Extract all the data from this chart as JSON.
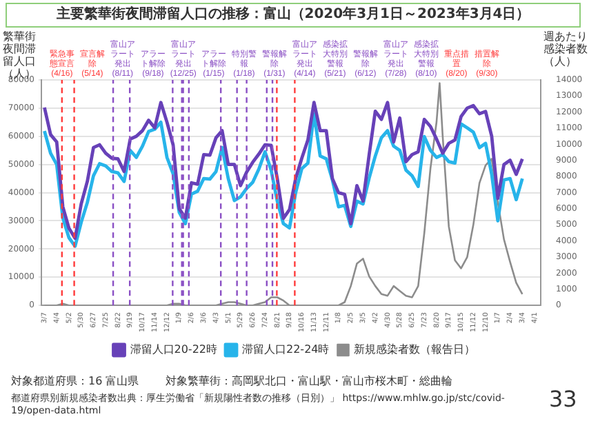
{
  "chart_data": {
    "type": "line",
    "title": "主要繁華街夜間滞留人口の推移：富山（2020年3月1日～2023年3月4日）",
    "ylabel": "繁華街夜間滞留人口（人）",
    "y2label": "週あたり感染者数（人）",
    "x": [
      "2020-03-07",
      "2020-03-21",
      "2020-04-04",
      "2020-04-18",
      "2020-05-02",
      "2020-05-16",
      "2020-05-30",
      "2020-06-13",
      "2020-06-27",
      "2020-07-11",
      "2020-07-25",
      "2020-08-08",
      "2020-08-22",
      "2020-09-05",
      "2020-09-19",
      "2020-10-03",
      "2020-10-17",
      "2020-10-31",
      "2020-11-14",
      "2020-11-28",
      "2020-12-12",
      "2020-12-26",
      "2021-01-09",
      "2021-01-23",
      "2021-02-06",
      "2021-02-20",
      "2021-03-06",
      "2021-03-20",
      "2021-04-03",
      "2021-04-17",
      "2021-05-01",
      "2021-05-15",
      "2021-05-29",
      "2021-06-12",
      "2021-06-26",
      "2021-07-10",
      "2021-07-24",
      "2021-08-07",
      "2021-08-21",
      "2021-09-04",
      "2021-09-18",
      "2021-10-02",
      "2021-10-16",
      "2021-10-30",
      "2021-11-13",
      "2021-11-27",
      "2021-12-11",
      "2021-12-25",
      "2022-01-08",
      "2022-01-22",
      "2022-02-05",
      "2022-02-19",
      "2022-03-05",
      "2022-03-19",
      "2022-04-02",
      "2022-04-16",
      "2022-04-30",
      "2022-05-14",
      "2022-05-28",
      "2022-06-11",
      "2022-06-25",
      "2022-07-09",
      "2022-07-23",
      "2022-08-06",
      "2022-08-20",
      "2022-09-03",
      "2022-09-17",
      "2022-10-01",
      "2022-10-15",
      "2022-10-29",
      "2022-11-12",
      "2022-11-26",
      "2022-12-10",
      "2022-12-24",
      "2023-01-07",
      "2023-01-21",
      "2023-02-04",
      "2023-02-18",
      "2023-03-04"
    ],
    "series": [
      {
        "name": "滞留人口20-22時",
        "color": "#6741b8",
        "values": [
          70200,
          60600,
          58000,
          35000,
          27400,
          23800,
          36000,
          44000,
          56000,
          57000,
          54000,
          52200,
          52000,
          47500,
          59000,
          60000,
          62000,
          65700,
          63000,
          72000,
          65000,
          57000,
          34300,
          31000,
          43500,
          43000,
          53500,
          53300,
          59500,
          62000,
          50000,
          50000,
          42500,
          47300,
          50800,
          53700,
          57000,
          56800,
          45000,
          30900,
          34000,
          45000,
          52200,
          58700,
          72000,
          62000,
          62000,
          45000,
          40000,
          39400,
          29000,
          42500,
          37000,
          53500,
          68900,
          66000,
          72000,
          58000,
          66500,
          51000,
          53500,
          54500,
          66000,
          63500,
          59000,
          54000,
          57500,
          58700,
          67000,
          70000,
          70900,
          68000,
          68800,
          60000,
          38000,
          50000,
          51500,
          46500,
          52000
        ]
      },
      {
        "name": "滞留人口22-24時",
        "color": "#27b4ea",
        "values": [
          61900,
          54000,
          50000,
          31000,
          24000,
          21000,
          29500,
          36500,
          46000,
          50300,
          49500,
          47500,
          47000,
          44000,
          55000,
          52500,
          56500,
          61700,
          62500,
          65000,
          52500,
          46700,
          33000,
          29000,
          39500,
          40500,
          45000,
          44800,
          47500,
          56000,
          45000,
          37200,
          38500,
          41500,
          43700,
          48400,
          54500,
          48000,
          37000,
          29000,
          27500,
          40000,
          48500,
          50500,
          68000,
          53000,
          52000,
          44500,
          35000,
          35500,
          28000,
          37000,
          36000,
          45200,
          53000,
          59500,
          62000,
          56500,
          55000,
          48000,
          46000,
          42200,
          59900,
          55000,
          52500,
          53500,
          51000,
          50500,
          64400,
          63000,
          61500,
          56000,
          57500,
          46500,
          30000,
          44500,
          45000,
          37500,
          45000
        ]
      },
      {
        "name": "新規感染者数（報告日）",
        "color": "#8c8c8c",
        "axis": "y2",
        "x": [
          "2020-03-07",
          "2020-03-21",
          "2020-04-04",
          "2020-04-18",
          "2020-05-02",
          "2020-05-16",
          "2020-05-30",
          "2020-06-13",
          "2020-06-27",
          "2020-07-11",
          "2020-07-25",
          "2020-08-08",
          "2020-08-22",
          "2020-09-05",
          "2020-09-19",
          "2020-10-03",
          "2020-10-17",
          "2020-10-31",
          "2020-11-14",
          "2020-11-28",
          "2020-12-12",
          "2020-12-26",
          "2021-01-09",
          "2021-01-23",
          "2021-02-06",
          "2021-02-20",
          "2021-03-06",
          "2021-03-20",
          "2021-04-03",
          "2021-04-17",
          "2021-05-01",
          "2021-05-15",
          "2021-05-29",
          "2021-06-12",
          "2021-06-26",
          "2021-07-10",
          "2021-07-24",
          "2021-08-07",
          "2021-08-21",
          "2021-09-04",
          "2021-09-18",
          "2021-10-02",
          "2021-10-16",
          "2021-10-30",
          "2021-11-13",
          "2021-11-27",
          "2021-12-11",
          "2021-12-25",
          "2022-01-08",
          "2022-01-22",
          "2022-02-05",
          "2022-02-19",
          "2022-03-05",
          "2022-03-19",
          "2022-04-02",
          "2022-04-16",
          "2022-04-30",
          "2022-05-14",
          "2022-05-28",
          "2022-06-11",
          "2022-06-25",
          "2022-07-09",
          "2022-07-23",
          "2022-08-06",
          "2022-08-20",
          "2022-08-27",
          "2022-09-03",
          "2022-09-17",
          "2022-10-01",
          "2022-10-15",
          "2022-10-29",
          "2022-11-12",
          "2022-11-26",
          "2022-12-10",
          "2022-12-24",
          "2023-01-07",
          "2023-01-21",
          "2023-02-04",
          "2023-02-18",
          "2023-03-04"
        ],
        "values": [
          0,
          0,
          0,
          100,
          0,
          0,
          0,
          0,
          0,
          0,
          0,
          0,
          0,
          0,
          0,
          0,
          0,
          0,
          0,
          0,
          0,
          100,
          100,
          0,
          0,
          0,
          0,
          0,
          0,
          100,
          200,
          200,
          100,
          0,
          0,
          100,
          200,
          500,
          500,
          300,
          0,
          0,
          0,
          0,
          0,
          0,
          0,
          0,
          0,
          200,
          1200,
          2600,
          2900,
          1800,
          1200,
          700,
          600,
          1200,
          900,
          600,
          500,
          1200,
          4500,
          8500,
          11400,
          13800,
          10500,
          4900,
          2800,
          2300,
          3000,
          5000,
          7600,
          8700,
          9100,
          6400,
          4100,
          2700,
          1400,
          700
        ]
      }
    ],
    "xlim": [
      "2020-02-29",
      "2023-04-15"
    ],
    "xticks": [
      {
        "value": "2020-03-07",
        "label": "3/7"
      },
      {
        "value": "2020-04-04",
        "label": "4/4"
      },
      {
        "value": "2020-05-02",
        "label": "5/2"
      },
      {
        "value": "2020-05-30",
        "label": "5/30"
      },
      {
        "value": "2020-06-27",
        "label": "6/27"
      },
      {
        "value": "2020-07-25",
        "label": "7/25"
      },
      {
        "value": "2020-08-22",
        "label": "8/22"
      },
      {
        "value": "2020-09-19",
        "label": "9/19"
      },
      {
        "value": "2020-10-17",
        "label": "10/17"
      },
      {
        "value": "2020-11-14",
        "label": "11/14"
      },
      {
        "value": "2020-12-12",
        "label": "12/12"
      },
      {
        "value": "2021-01-09",
        "label": "1/9"
      },
      {
        "value": "2021-02-06",
        "label": "2/6"
      },
      {
        "value": "2021-03-06",
        "label": "3/6"
      },
      {
        "value": "2021-04-03",
        "label": "4/3"
      },
      {
        "value": "2021-05-01",
        "label": "5/1"
      },
      {
        "value": "2021-05-29",
        "label": "5/29"
      },
      {
        "value": "2021-06-26",
        "label": "6/26"
      },
      {
        "value": "2021-07-24",
        "label": "7/24"
      },
      {
        "value": "2021-08-21",
        "label": "8/21"
      },
      {
        "value": "2021-09-18",
        "label": "9/18"
      },
      {
        "value": "2021-10-16",
        "label": "10/16"
      },
      {
        "value": "2021-11-13",
        "label": "11/13"
      },
      {
        "value": "2021-12-11",
        "label": "12/11"
      },
      {
        "value": "2022-01-08",
        "label": "1/8"
      },
      {
        "value": "2022-02-05",
        "label": "2/5"
      },
      {
        "value": "2022-03-05",
        "label": "3/5"
      },
      {
        "value": "2022-04-02",
        "label": "4/2"
      },
      {
        "value": "2022-04-30",
        "label": "4/30"
      },
      {
        "value": "2022-05-28",
        "label": "5/28"
      },
      {
        "value": "2022-06-25",
        "label": "6/25"
      },
      {
        "value": "2022-07-23",
        "label": "7/23"
      },
      {
        "value": "2022-08-20",
        "label": "8/20"
      },
      {
        "value": "2022-09-17",
        "label": "9/17"
      },
      {
        "value": "2022-10-15",
        "label": "10/15"
      },
      {
        "value": "2022-11-12",
        "label": "11/12"
      },
      {
        "value": "2022-12-10",
        "label": "12/10"
      },
      {
        "value": "2023-01-07",
        "label": "1/7"
      },
      {
        "value": "2023-02-04",
        "label": "2/4"
      },
      {
        "value": "2023-03-04",
        "label": "3/4"
      },
      {
        "value": "2023-04-01",
        "label": "4/1"
      }
    ],
    "ylim": [
      0,
      80000
    ],
    "yticks": [
      0,
      10000,
      20000,
      30000,
      40000,
      50000,
      60000,
      70000,
      80000
    ],
    "y2lim": [
      0,
      14000
    ],
    "y2ticks": [
      0,
      1000,
      2000,
      3000,
      4000,
      5000,
      6000,
      7000,
      8000,
      9000,
      10000,
      11000,
      12000,
      13000,
      14000
    ],
    "ref_lines": [
      {
        "axis": "x",
        "value": "2020-04-16",
        "label": "緊急事態宣言(4/16)",
        "color": "#ff3b3b",
        "line_style": "dashed"
      },
      {
        "axis": "x",
        "value": "2020-05-14",
        "label": "宣言解除(5/14)",
        "color": "#ff3b3b",
        "line_style": "dashed"
      },
      {
        "axis": "x",
        "value": "2020-08-11",
        "label": "富山アラート発出(8/11)",
        "color": "#8a4fc4",
        "line_style": "dashed"
      },
      {
        "axis": "x",
        "value": "2020-09-18",
        "label": "アラート解除(9/18)",
        "color": "#8a4fc4",
        "line_style": "dashed"
      },
      {
        "axis": "x",
        "value": "2020-12-25",
        "label": "富山アラート発出(12/25)",
        "color": "#8a4fc4",
        "line_style": "dashed"
      },
      {
        "axis": "x",
        "value": "2021-01-15",
        "label": "アラート解除(1/15)",
        "color": "#8a4fc4",
        "line_style": "dashed"
      },
      {
        "axis": "x",
        "value": "2021-01-18",
        "label": "特別警報(1/18)",
        "color": "#8a4fc4",
        "line_style": "dashed"
      },
      {
        "axis": "x",
        "value": "2021-01-31",
        "label": "警報解除(1/31)",
        "color": "#8a4fc4",
        "line_style": "dashed"
      },
      {
        "axis": "x",
        "value": "2021-04-14",
        "label": "富山アラート発出(4/14)",
        "color": "#8a4fc4",
        "line_style": "dashed"
      },
      {
        "axis": "x",
        "value": "2021-05-21",
        "label": "感染拡大特別警報(5/21)",
        "color": "#8a4fc4",
        "line_style": "dashed"
      },
      {
        "axis": "x",
        "value": "2021-06-12",
        "label": "警報解除(6/12)",
        "color": "#8a4fc4",
        "line_style": "dashed"
      },
      {
        "axis": "x",
        "value": "2021-07-28",
        "label": "富山アラート発出(7/28)",
        "color": "#8a4fc4",
        "line_style": "dashed"
      },
      {
        "axis": "x",
        "value": "2021-08-10",
        "label": "感染拡大特別警報(8/10)",
        "color": "#8a4fc4",
        "line_style": "dashed"
      },
      {
        "axis": "x",
        "value": "2021-08-20",
        "label": "重点措置(8/20)",
        "color": "#ff3b3b",
        "line_style": "dashed"
      },
      {
        "axis": "x",
        "value": "2021-09-30",
        "label": "措置解除(9/30)",
        "color": "#ff3b3b",
        "line_style": "dashed"
      }
    ],
    "annotations": [
      "対象都道府県：16 富山県",
      "対象繁華街：高岡駅北口・富山駅・富山市桜木町・総曲輪",
      "都道府県別新規感染者数出典：厚生労働省「新規陽性者数の推移（日別）」 https://www.mhlw.go.jp/stc/covid-19/open-data.html",
      "33"
    ],
    "grid": "y",
    "legend": "bottom",
    "marker": "none",
    "line_style": "solid"
  }
}
